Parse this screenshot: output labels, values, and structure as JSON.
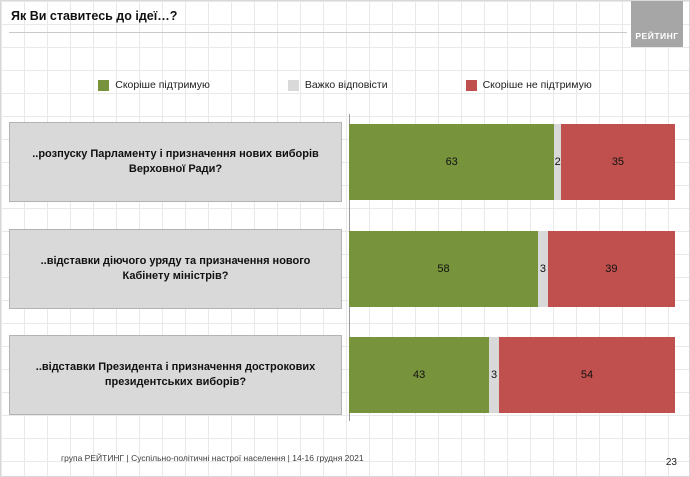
{
  "title": "Як Ви ставитесь до ідеї…?",
  "logo_text": "РЕЙТИНГ",
  "legend": {
    "items": [
      {
        "label": "Скоріше підтримую",
        "color": "#77933C"
      },
      {
        "label": "Важко відповісти",
        "color": "#D9D9D9"
      },
      {
        "label": "Скоріше не підтримую",
        "color": "#C0504D"
      }
    ]
  },
  "chart_data": {
    "type": "bar",
    "orientation": "horizontal",
    "stacked": true,
    "xlim": [
      0,
      100
    ],
    "grid": true,
    "legend_position": "top",
    "categories": [
      "..розпуску Парламенту і призначення нових виборів Верховної Ради?",
      "..відставки діючого уряду та призначення нового Кабінету міністрів?",
      "..відставки Президента і призначення дострокових президентських виборів?"
    ],
    "series": [
      {
        "name": "Скоріше підтримую",
        "color": "#77933C",
        "values": [
          63,
          58,
          43
        ]
      },
      {
        "name": "Важко відповісти",
        "color": "#D9D9D9",
        "values": [
          2,
          3,
          3
        ]
      },
      {
        "name": "Скоріше не підтримую",
        "color": "#C0504D",
        "values": [
          35,
          39,
          54
        ]
      }
    ]
  },
  "footer": {
    "source": "група РЕЙТИНГ | Суспільно-політичні настрої населення |  14-16 грудня 2021",
    "page": "23"
  }
}
